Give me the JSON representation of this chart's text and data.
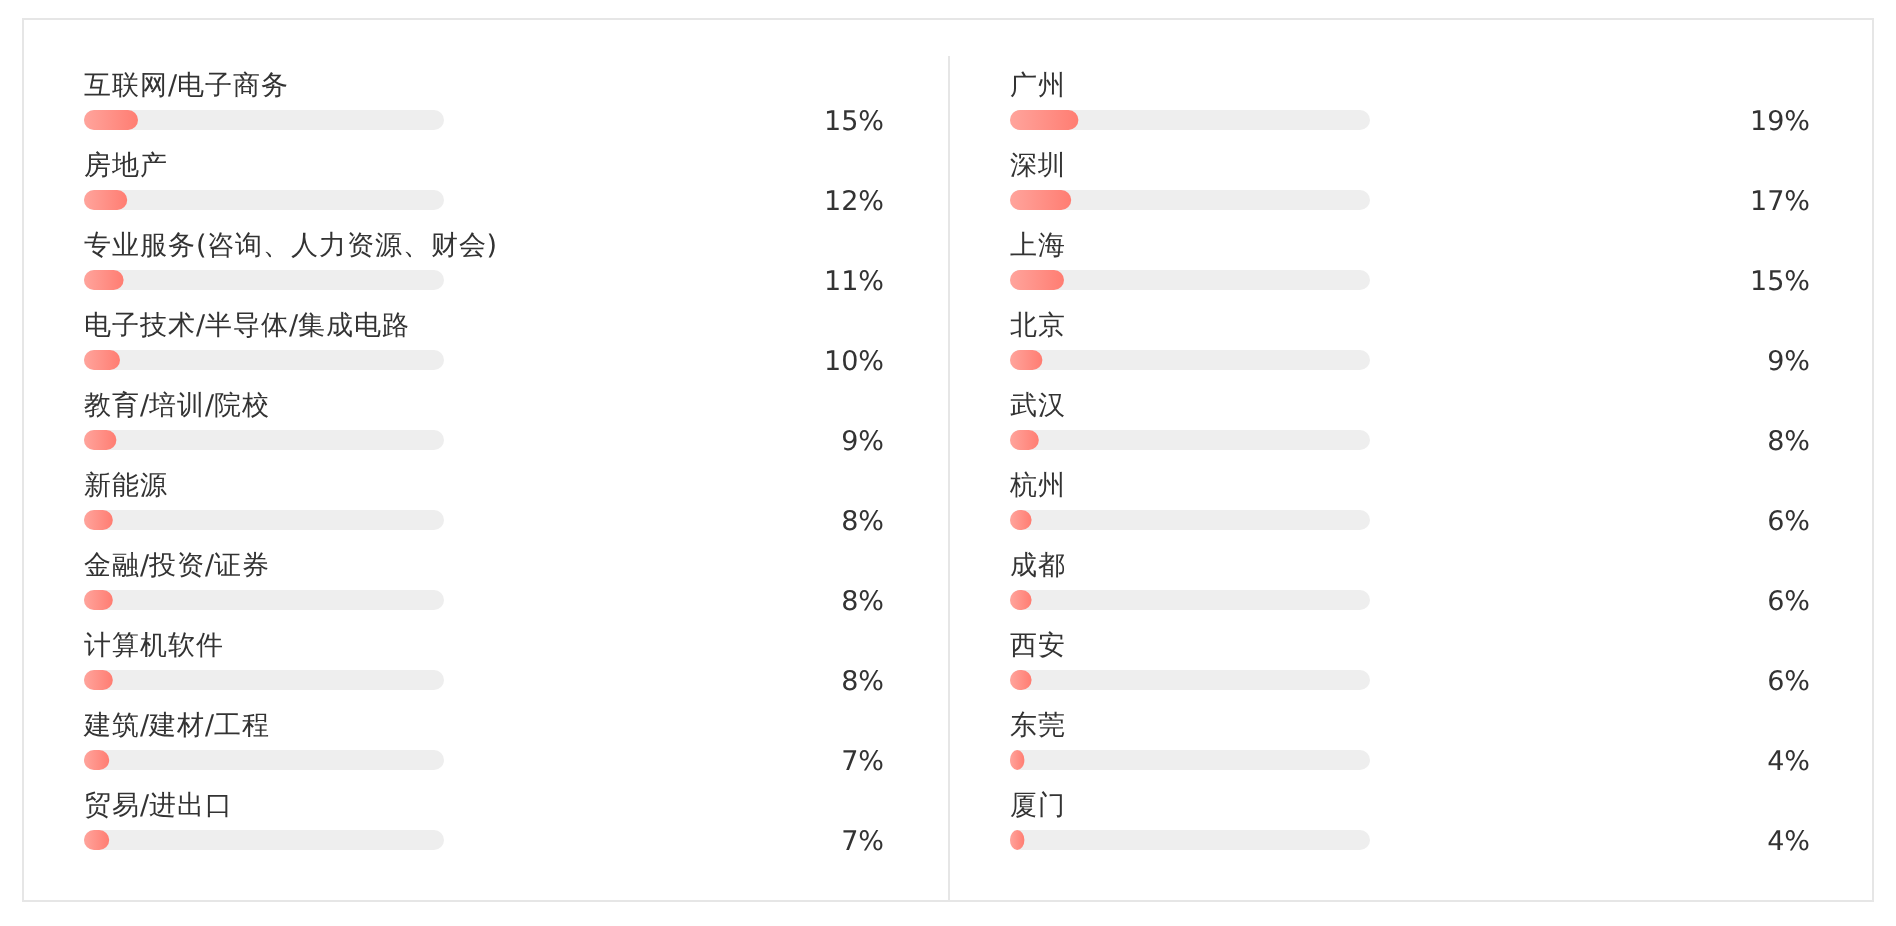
{
  "chart_data": [
    {
      "type": "bar",
      "orientation": "horizontal",
      "categories": [
        "互联网/电子商务",
        "房地产",
        "专业服务(咨询、人力资源、财会)",
        "电子技术/半导体/集成电路",
        "教育/培训/院校",
        "新能源",
        "金融/投资/证券",
        "计算机软件",
        "建筑/建材/工程",
        "贸易/进出口"
      ],
      "values": [
        15,
        12,
        11,
        10,
        9,
        8,
        8,
        8,
        7,
        7
      ],
      "value_labels": [
        "15%",
        "12%",
        "11%",
        "10%",
        "9%",
        "8%",
        "8%",
        "8%",
        "7%",
        "7%"
      ],
      "color": "#ff7d72",
      "xlim": [
        0,
        100
      ]
    },
    {
      "type": "bar",
      "orientation": "horizontal",
      "categories": [
        "广州",
        "深圳",
        "上海",
        "北京",
        "武汉",
        "杭州",
        "成都",
        "西安",
        "东莞",
        "厦门"
      ],
      "values": [
        19,
        17,
        15,
        9,
        8,
        6,
        6,
        6,
        4,
        4
      ],
      "value_labels": [
        "19%",
        "17%",
        "15%",
        "9%",
        "8%",
        "6%",
        "6%",
        "6%",
        "4%",
        "4%"
      ],
      "color": "#ff7d72",
      "xlim": [
        0,
        100
      ]
    }
  ]
}
